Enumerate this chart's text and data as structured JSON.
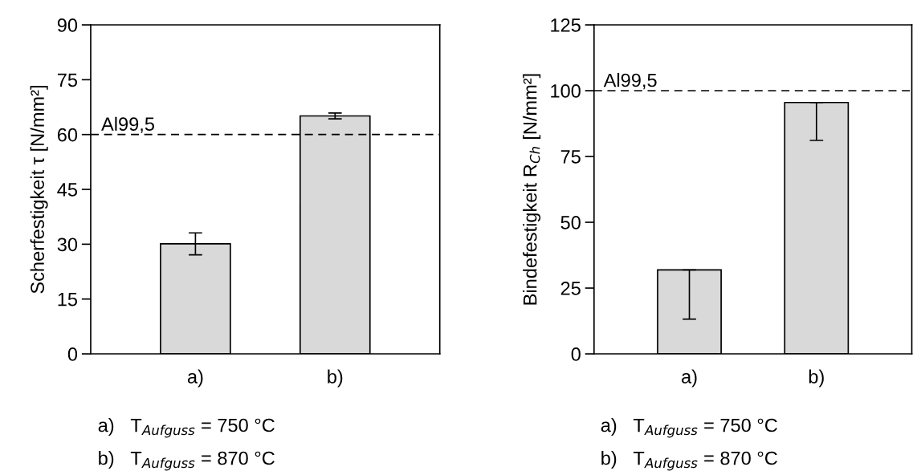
{
  "chart_data": [
    {
      "type": "bar",
      "ylabel": "Scherfestigkeit τ [N/mm²]",
      "categories": [
        "a)",
        "b)"
      ],
      "values": [
        30.1,
        65.1
      ],
      "errors": [
        3.0,
        0.8
      ],
      "color": "#d9d9d9",
      "ylim": [
        0,
        90
      ],
      "yticks": [
        0,
        15,
        30,
        45,
        60,
        75,
        90
      ],
      "grid": false,
      "ref_lines": [
        {
          "axis": "y",
          "value": 60,
          "label": "Al99,5",
          "color": "#000000",
          "line_style": "dashed"
        }
      ],
      "annotations": [
        "a)   T$_{Aufguss}$ = 750 °C",
        "b)   T$_{Aufguss}$ = 870 °C"
      ]
    },
    {
      "type": "bar",
      "ylabel": "Bindefestigkeit R$_{Ch}$ [N/mm²]",
      "categories": [
        "a)",
        "b)"
      ],
      "values": [
        31.9,
        95.5
      ],
      "errors": [
        [
          13.2,
          31.9
        ],
        [
          81.1,
          95.5
        ]
      ],
      "color": "#d9d9d9",
      "ylim": [
        0,
        125
      ],
      "yticks": [
        0,
        25,
        50,
        75,
        100,
        125
      ],
      "grid": false,
      "ref_lines": [
        {
          "axis": "y",
          "value": 100,
          "label": "Al99,5",
          "color": "#000000",
          "line_style": "dashed"
        }
      ],
      "annotations": [
        "a)   T$_{Aufguss}$ = 750 °C",
        "b)   T$_{Aufguss}$ = 870 °C"
      ]
    }
  ]
}
